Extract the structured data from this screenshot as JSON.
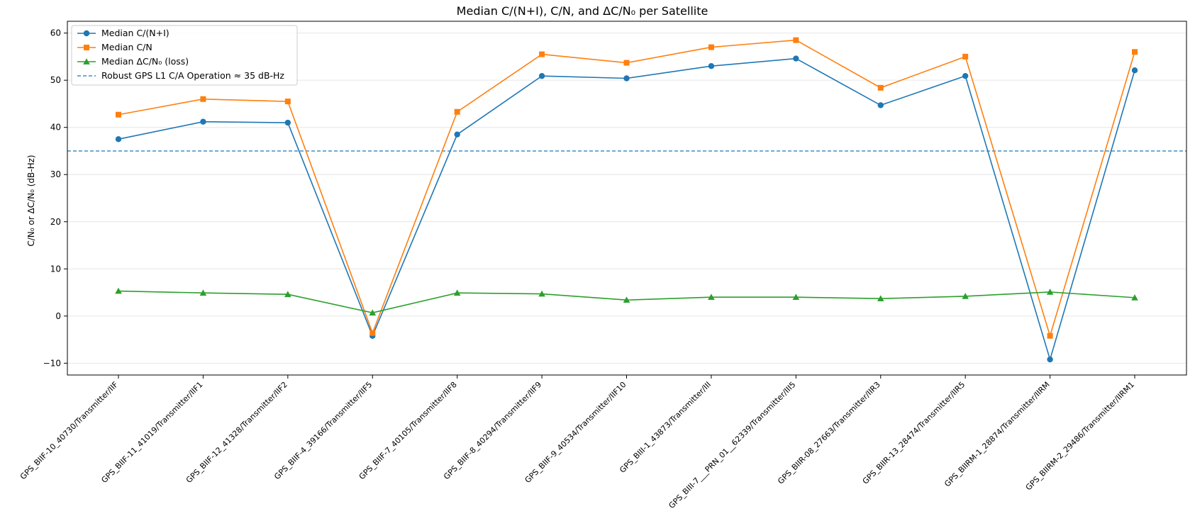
{
  "chart_data": {
    "type": "line",
    "title": "Median C/(N+I), C/N, and ΔC/N₀ per Satellite",
    "xlabel": "",
    "ylabel": "C/N₀ or ΔC/N₀ (dB-Hz)",
    "ylim": [
      -12.5,
      62.5
    ],
    "yticks": [
      -10,
      0,
      10,
      20,
      30,
      40,
      50,
      60
    ],
    "grid": "y",
    "legend_position": "top-left",
    "categories": [
      "GPS_BIIF-10_40730/Transmitter/IIF",
      "GPS_BIIF-11_41019/Transmitter/IIF1",
      "GPS_BIIF-12_41328/Transmitter/IIF2",
      "GPS_BIIF-4_39166/Transmitter/IIF5",
      "GPS_BIIF-7_40105/Transmitter/IIF8",
      "GPS_BIIF-8_40294/Transmitter/IIF9",
      "GPS_BIIF-9_40534/Transmitter/IIF10",
      "GPS_BIII-1_43873/Transmitter/III",
      "GPS_BIII-7___PRN_01__62339/Transmitter/III5",
      "GPS_BIIR-08_27663/Transmitter/IIR3",
      "GPS_BIIR-13_28474/Transmitter/IIR5",
      "GPS_BIIRM-1_28874/Transmitter/IIRM",
      "GPS_BIIRM-2_29486/Transmitter/IIRM1"
    ],
    "series": [
      {
        "name": "Median C/(N+I)",
        "color": "#1f77b4",
        "marker": "circle",
        "values": [
          37.5,
          41.2,
          41.0,
          -4.2,
          38.5,
          50.9,
          50.4,
          53.0,
          54.6,
          44.7,
          50.9,
          -9.2,
          52.1
        ]
      },
      {
        "name": "Median C/N",
        "color": "#ff7f0e",
        "marker": "square",
        "values": [
          42.7,
          46.0,
          45.5,
          -3.6,
          43.3,
          55.5,
          53.7,
          57.0,
          58.5,
          48.4,
          55.0,
          -4.2,
          56.0
        ]
      },
      {
        "name": "Median ΔC/N₀ (loss)",
        "color": "#2ca02c",
        "marker": "triangle",
        "values": [
          5.3,
          4.9,
          4.6,
          0.7,
          4.9,
          4.7,
          3.4,
          4.0,
          4.0,
          3.7,
          4.2,
          5.1,
          3.9
        ]
      }
    ],
    "reference_line": {
      "name": "Robust GPS L1 C/A Operation ≈ 35 dB-Hz",
      "value": 35,
      "color": "#1f77b4",
      "style": "dashed"
    }
  }
}
